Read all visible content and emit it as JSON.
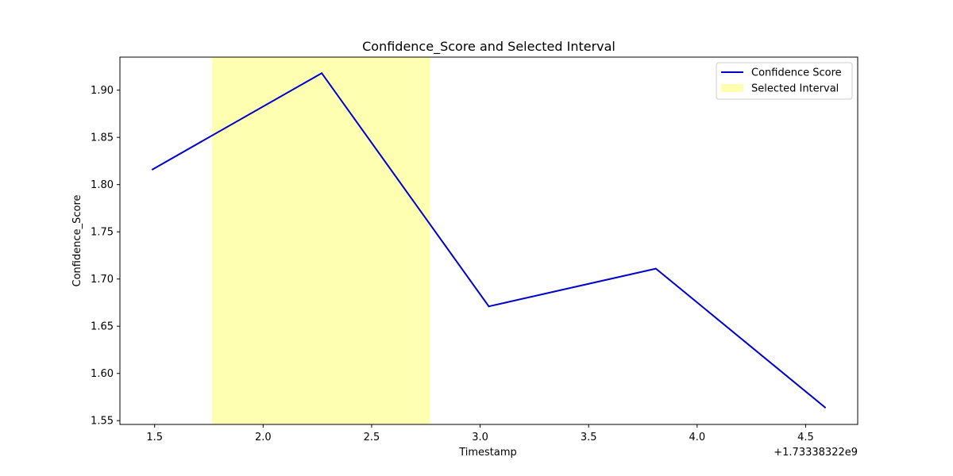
{
  "chart_data": {
    "type": "line",
    "title": "Confidence_Score and Selected Interval",
    "xlabel": "Timestamp",
    "ylabel": "Confidence_Score",
    "x_offset_text": "+1.73338322e9",
    "xlim": [
      1.34,
      4.74
    ],
    "ylim": [
      1.546,
      1.935
    ],
    "x_ticks": [
      1.5,
      2.0,
      2.5,
      3.0,
      3.5,
      4.0,
      4.5
    ],
    "x_tick_labels": [
      "1.5",
      "2.0",
      "2.5",
      "3.0",
      "3.5",
      "4.0",
      "4.5"
    ],
    "y_ticks": [
      1.55,
      1.6,
      1.65,
      1.7,
      1.75,
      1.8,
      1.85,
      1.9
    ],
    "y_tick_labels": [
      "1.55",
      "1.60",
      "1.65",
      "1.70",
      "1.75",
      "1.80",
      "1.85",
      "1.90"
    ],
    "grid": false,
    "legend_position": "top-right",
    "series": [
      {
        "name": "Confidence Score",
        "color": "#0000cc",
        "x": [
          1.49,
          2.27,
          3.04,
          3.81,
          4.59
        ],
        "y": [
          1.816,
          1.918,
          1.671,
          1.711,
          1.564
        ]
      }
    ],
    "highlight": {
      "name": "Selected Interval",
      "x_start": 1.765,
      "x_end": 2.77,
      "color": "#ffff66",
      "opacity": 0.5
    }
  }
}
